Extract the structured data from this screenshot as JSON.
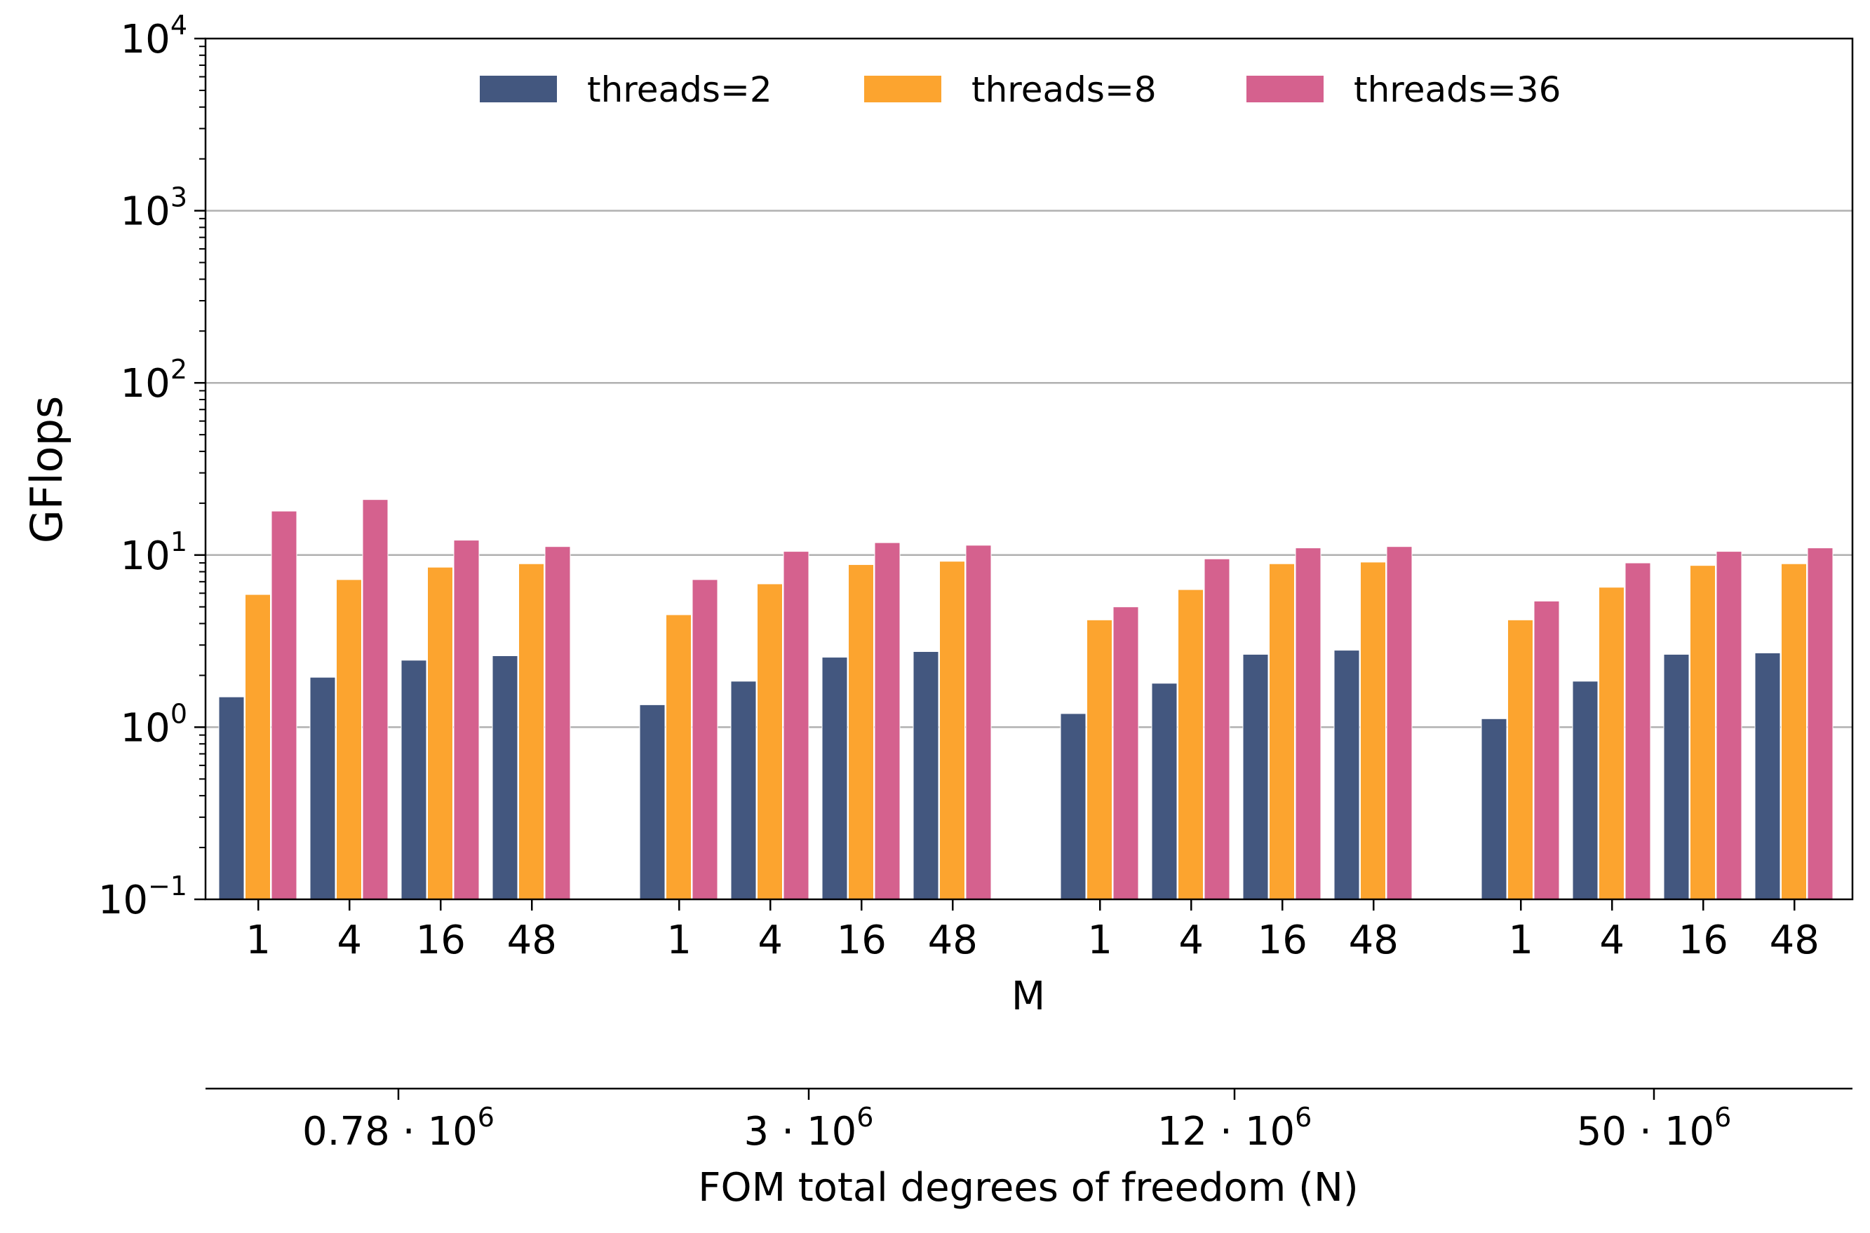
{
  "chart_data": {
    "type": "bar",
    "title": "",
    "ylabel": "GFlops",
    "xlabel": "M",
    "secondary_xlabel": "FOM total degrees of freedom (N)",
    "yscale": "log",
    "ylim": [
      0.1,
      10000
    ],
    "y_ticks": [
      {
        "base": "10",
        "exp": "−1",
        "value": 0.1
      },
      {
        "base": "10",
        "exp": "0",
        "value": 1
      },
      {
        "base": "10",
        "exp": "1",
        "value": 10
      },
      {
        "base": "10",
        "exp": "2",
        "value": 100
      },
      {
        "base": "10",
        "exp": "3",
        "value": 1000
      },
      {
        "base": "10",
        "exp": "4",
        "value": 10000
      }
    ],
    "grid": true,
    "legend_position": "top-center",
    "groups": [
      {
        "label_main": "0.78",
        "label_dot": "·",
        "label_base": "10",
        "label_exp": "6"
      },
      {
        "label_main": "3",
        "label_dot": "·",
        "label_base": "10",
        "label_exp": "6"
      },
      {
        "label_main": "12",
        "label_dot": "·",
        "label_base": "10",
        "label_exp": "6"
      },
      {
        "label_main": "50",
        "label_dot": "·",
        "label_base": "10",
        "label_exp": "6"
      }
    ],
    "categories": [
      "1",
      "4",
      "16",
      "48"
    ],
    "series": [
      {
        "name": "threads=2",
        "color": "#43577f",
        "values": [
          [
            1.5,
            1.95,
            2.45,
            2.6
          ],
          [
            1.35,
            1.85,
            2.55,
            2.75
          ],
          [
            1.2,
            1.8,
            2.65,
            2.8
          ],
          [
            1.12,
            1.85,
            2.65,
            2.7
          ]
        ]
      },
      {
        "name": "threads=8",
        "color": "#fca42f",
        "values": [
          [
            5.9,
            7.2,
            8.5,
            8.9
          ],
          [
            4.5,
            6.8,
            8.8,
            9.2
          ],
          [
            4.2,
            6.3,
            8.9,
            9.1
          ],
          [
            4.2,
            6.5,
            8.7,
            8.9
          ]
        ]
      },
      {
        "name": "threads=36",
        "color": "#d5618e",
        "values": [
          [
            18.0,
            21.0,
            12.2,
            11.2
          ],
          [
            7.2,
            10.5,
            11.8,
            11.4
          ],
          [
            5.0,
            9.5,
            11.0,
            11.2
          ],
          [
            5.4,
            9.0,
            10.5,
            11.0
          ]
        ]
      }
    ]
  }
}
